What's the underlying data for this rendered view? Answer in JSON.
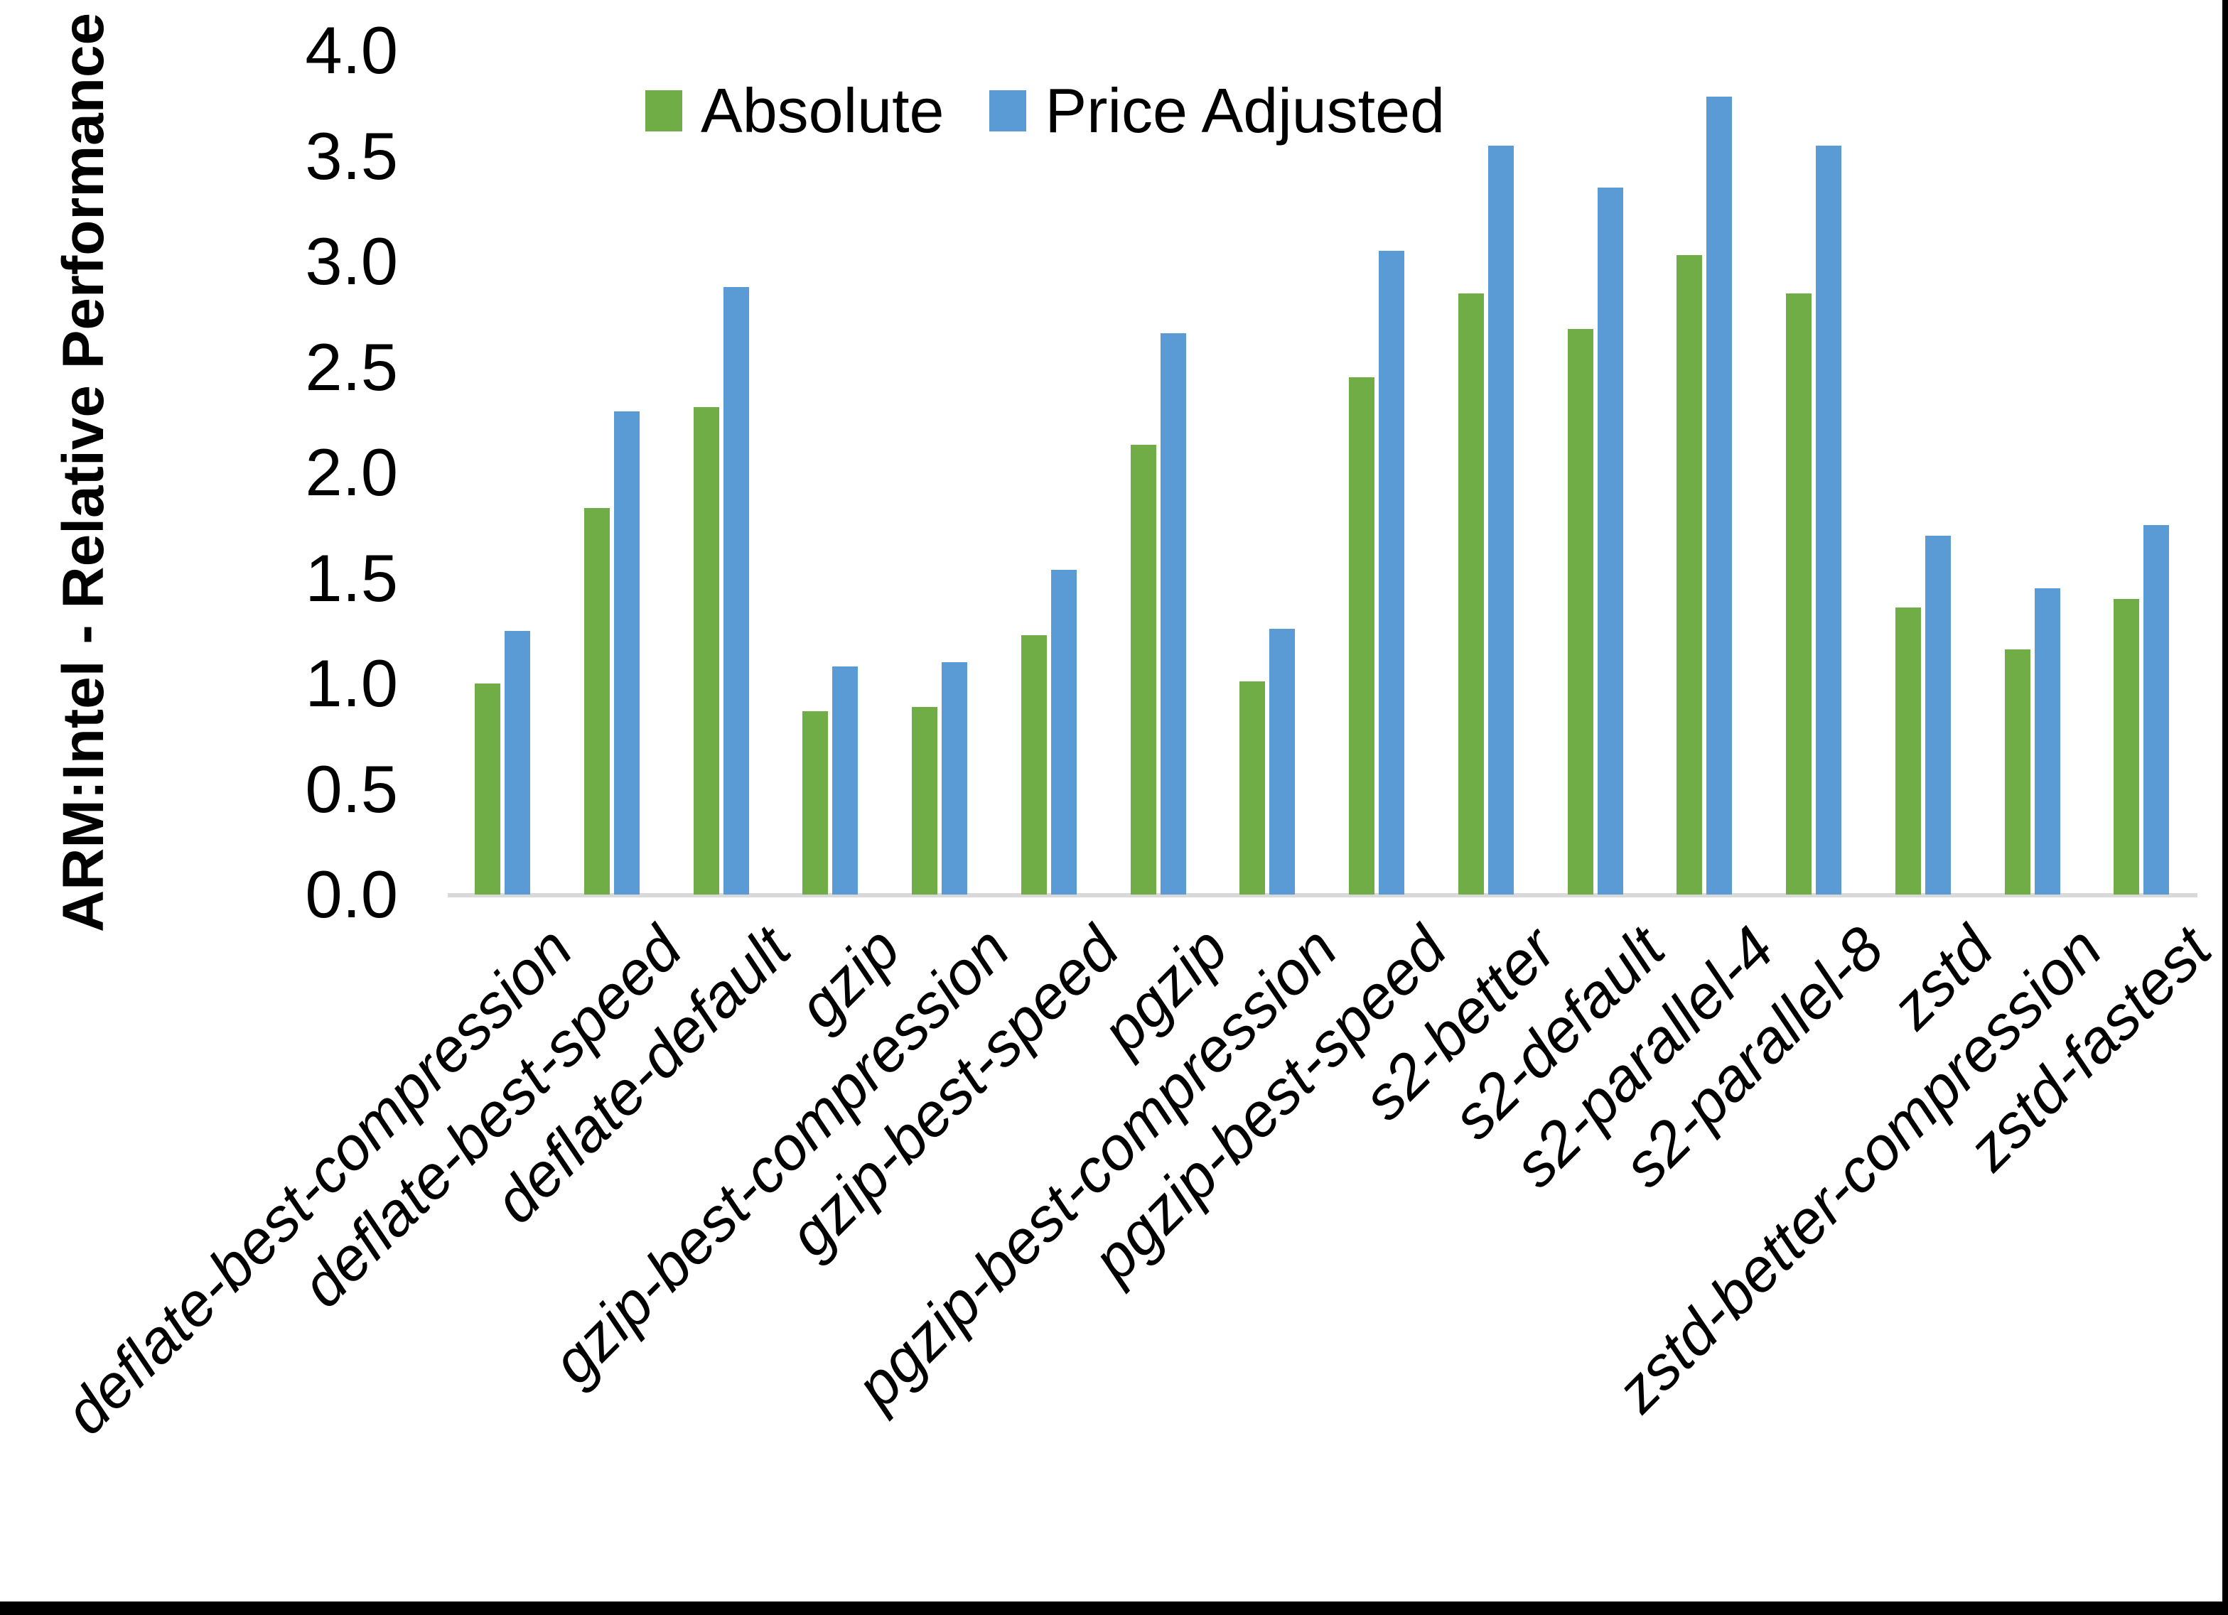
{
  "colors": {
    "absolute": "#70AD47",
    "price_adjusted": "#5B9BD5",
    "axis_line": "#D9D9D9",
    "frame": "#000000",
    "text": "#000000"
  },
  "chart_data": {
    "type": "bar",
    "title": "",
    "xlabel": "",
    "ylabel": "ARM:Intel - Relative Performance",
    "ylim": [
      0.0,
      4.0
    ],
    "ytick_step": 0.5,
    "yticks": [
      "0.0",
      "0.5",
      "1.0",
      "1.5",
      "2.0",
      "2.5",
      "3.0",
      "3.5",
      "4.0"
    ],
    "grid": false,
    "legend_position": "top-center",
    "bar_orientation": "vertical",
    "categories": [
      "deflate-best-compression",
      "deflate-best-speed",
      "deflate-default",
      "gzip",
      "gzip-best-compression",
      "gzip-best-speed",
      "pgzip",
      "pgzip-best-compression",
      "pgzip-best-speed",
      "s2-better",
      "s2-default",
      "s2-parallel-4",
      "s2-parallel-8",
      "zstd",
      "zstd-better-compression",
      "zstd-fastest"
    ],
    "series": [
      {
        "name": "Absolute",
        "color": "#70AD47",
        "values": [
          1.0,
          1.83,
          2.31,
          0.87,
          0.89,
          1.23,
          2.13,
          1.01,
          2.45,
          2.85,
          2.68,
          3.03,
          2.85,
          1.36,
          1.16,
          1.4
        ]
      },
      {
        "name": "Price Adjusted",
        "color": "#5B9BD5",
        "values": [
          1.25,
          2.29,
          2.88,
          1.08,
          1.1,
          1.54,
          2.66,
          1.26,
          3.05,
          3.55,
          3.35,
          3.78,
          3.55,
          1.7,
          1.45,
          1.75
        ]
      }
    ]
  }
}
